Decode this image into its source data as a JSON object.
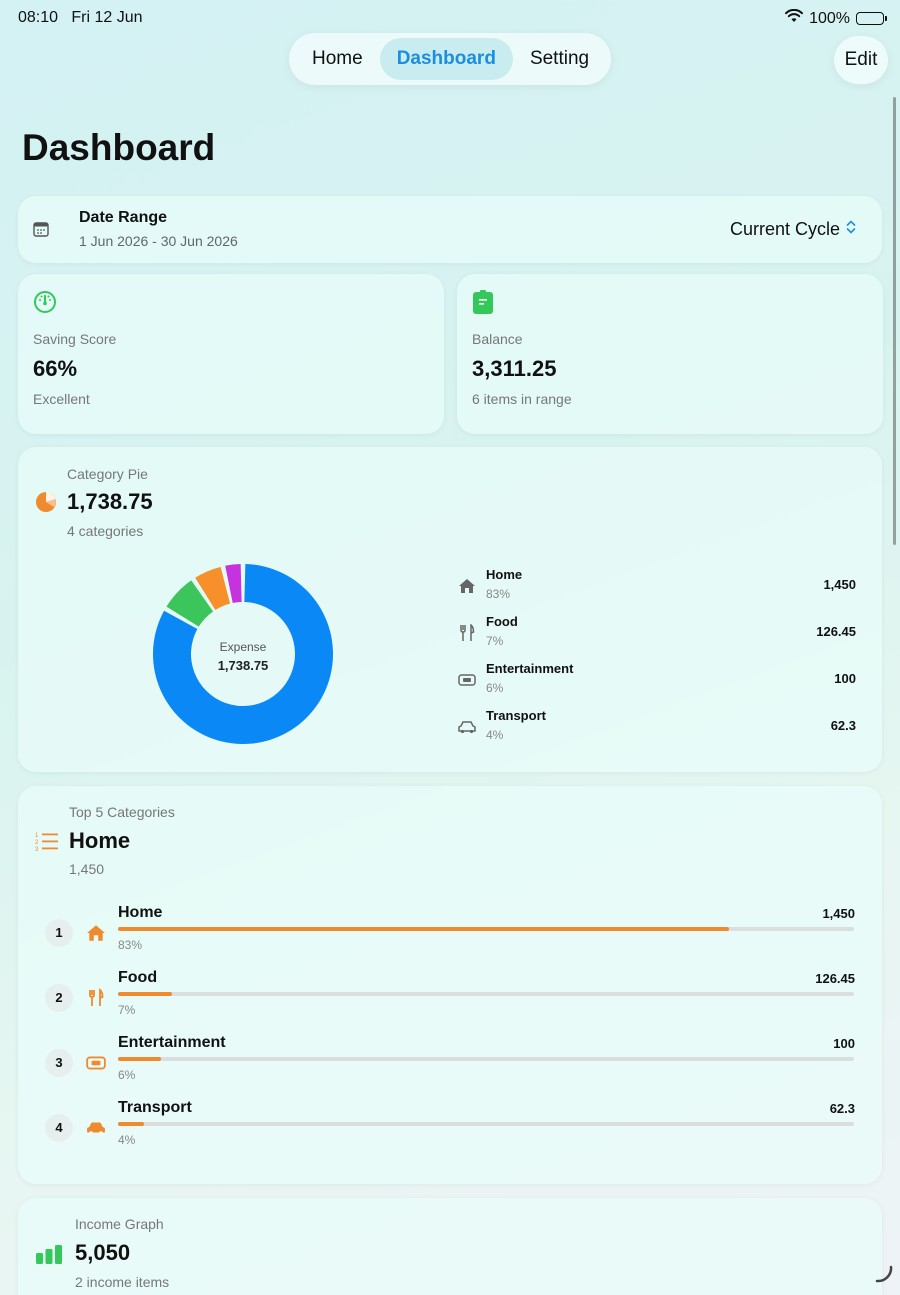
{
  "status": {
    "time": "08:10",
    "date": "Fri 12 Jun",
    "battery": "100%"
  },
  "nav": {
    "tabs": [
      {
        "label": "Home"
      },
      {
        "label": "Dashboard"
      },
      {
        "label": "Setting"
      }
    ],
    "active_tab": "Dashboard",
    "edit_label": "Edit"
  },
  "page": {
    "title": "Dashboard"
  },
  "date_range": {
    "title": "Date Range",
    "range": "1 Jun 2026 - 30 Jun 2026",
    "cycle": "Current Cycle"
  },
  "saving_score": {
    "label": "Saving Score",
    "value": "66%",
    "sub": "Excellent"
  },
  "balance": {
    "label": "Balance",
    "value": "3,311.25",
    "sub": "6 items in range"
  },
  "category_pie": {
    "label": "Category Pie",
    "value": "1,738.75",
    "sub": "4 categories",
    "center_label": "Expense",
    "center_value": "1,738.75",
    "items": [
      {
        "name": "Home",
        "pct": "83%",
        "value": "1,450",
        "amount": 1450,
        "color": "#0a88f5",
        "icon": "house-icon"
      },
      {
        "name": "Food",
        "pct": "7%",
        "value": "126.45",
        "amount": 126.45,
        "color": "#3cc55a",
        "icon": "fork-knife-icon"
      },
      {
        "name": "Entertainment",
        "pct": "6%",
        "value": "100",
        "amount": 100,
        "color": "#f7902a",
        "icon": "ticket-icon"
      },
      {
        "name": "Transport",
        "pct": "4%",
        "value": "62.3",
        "amount": 62.3,
        "color": "#c632dd",
        "icon": "car-icon"
      }
    ]
  },
  "top_categories": {
    "label": "Top 5 Categories",
    "value": "Home",
    "sub": "1,450",
    "items": [
      {
        "rank": "1",
        "name": "Home",
        "value": "1,450",
        "pct": "83%",
        "fraction": 0.83,
        "icon": "house-icon"
      },
      {
        "rank": "2",
        "name": "Food",
        "value": "126.45",
        "pct": "7%",
        "fraction": 0.073,
        "icon": "fork-knife-icon"
      },
      {
        "rank": "3",
        "name": "Entertainment",
        "value": "100",
        "pct": "6%",
        "fraction": 0.058,
        "icon": "ticket-icon"
      },
      {
        "rank": "4",
        "name": "Transport",
        "value": "62.3",
        "pct": "4%",
        "fraction": 0.036,
        "icon": "car-icon"
      }
    ]
  },
  "income_graph": {
    "label": "Income Graph",
    "value": "5,050",
    "sub": "2 income items"
  },
  "colors": {
    "accent": "#1c8ee0",
    "orange": "#f08a2e",
    "green": "#34c759"
  }
}
